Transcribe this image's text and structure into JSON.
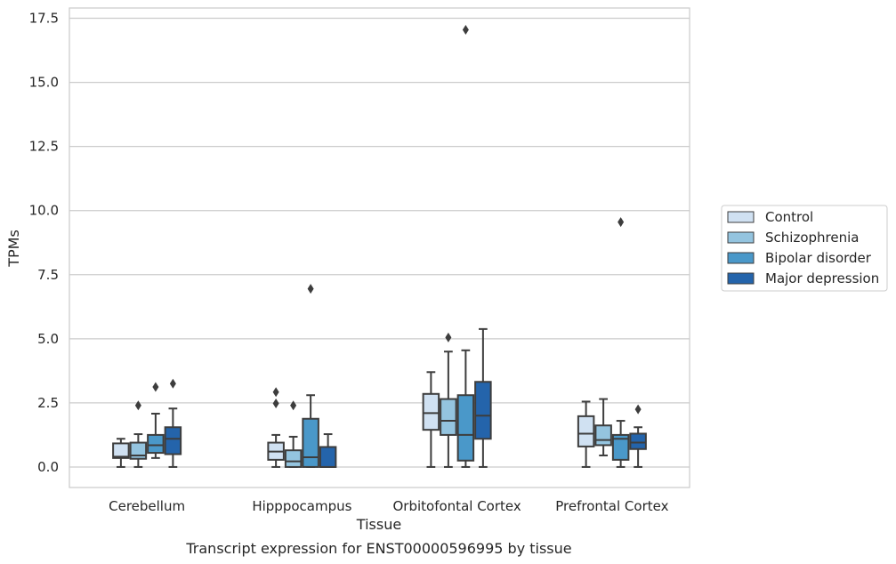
{
  "chart_data": {
    "type": "box",
    "title": "",
    "caption": "Transcript expression for ENST00000596995 by tissue",
    "xlabel": "Tissue",
    "ylabel": "TPMs",
    "ylim": [
      -0.8,
      17.9
    ],
    "yticks": [
      "0.0",
      "2.5",
      "5.0",
      "7.5",
      "10.0",
      "12.5",
      "15.0",
      "17.5"
    ],
    "ytick_values": [
      0,
      2.5,
      5,
      7.5,
      10,
      12.5,
      15,
      17.5
    ],
    "grid": "horizontal",
    "legend_position": "right",
    "categories": [
      "Cerebellum",
      "Hipppocampus",
      "Orbitofontal Cortex",
      "Prefrontal Cortex"
    ],
    "series": [
      {
        "name": "Control",
        "color": "#d0e1f2",
        "boxes": [
          {
            "whislo": 0.0,
            "q1": 0.35,
            "med": 0.4,
            "q3": 0.92,
            "whishi": 1.1,
            "fliers": []
          },
          {
            "whislo": 0.0,
            "q1": 0.28,
            "med": 0.6,
            "q3": 0.95,
            "whishi": 1.25,
            "fliers": [
              2.48,
              2.92
            ]
          },
          {
            "whislo": 0.0,
            "q1": 1.45,
            "med": 2.1,
            "q3": 2.85,
            "whishi": 3.7,
            "fliers": []
          },
          {
            "whislo": 0.0,
            "q1": 0.8,
            "med": 1.3,
            "q3": 1.98,
            "whishi": 2.55,
            "fliers": []
          }
        ]
      },
      {
        "name": "Schizophrenia",
        "color": "#94c4df",
        "boxes": [
          {
            "whislo": 0.0,
            "q1": 0.32,
            "med": 0.45,
            "q3": 0.95,
            "whishi": 1.28,
            "fliers": [
              2.4
            ]
          },
          {
            "whislo": 0.0,
            "q1": 0.0,
            "med": 0.22,
            "q3": 0.65,
            "whishi": 1.18,
            "fliers": [
              2.4
            ]
          },
          {
            "whislo": 0.0,
            "q1": 1.25,
            "med": 1.8,
            "q3": 2.65,
            "whishi": 4.5,
            "fliers": [
              5.05
            ]
          },
          {
            "whislo": 0.45,
            "q1": 0.85,
            "med": 1.05,
            "q3": 1.62,
            "whishi": 2.65,
            "fliers": []
          }
        ]
      },
      {
        "name": "Bipolar disorder",
        "color": "#4a98c9",
        "boxes": [
          {
            "whislo": 0.35,
            "q1": 0.55,
            "med": 0.85,
            "q3": 1.25,
            "whishi": 2.08,
            "fliers": [
              3.12
            ]
          },
          {
            "whislo": 0.0,
            "q1": 0.0,
            "med": 0.38,
            "q3": 1.88,
            "whishi": 2.8,
            "fliers": [
              6.95
            ]
          },
          {
            "whislo": 0.0,
            "q1": 0.25,
            "med": 1.25,
            "q3": 2.8,
            "whishi": 4.55,
            "fliers": [
              17.05
            ]
          },
          {
            "whislo": 0.0,
            "q1": 0.28,
            "med": 1.1,
            "q3": 1.25,
            "whishi": 1.8,
            "fliers": [
              9.55
            ]
          }
        ]
      },
      {
        "name": "Major depression",
        "color": "#2464ab",
        "boxes": [
          {
            "whislo": 0.0,
            "q1": 0.5,
            "med": 1.1,
            "q3": 1.55,
            "whishi": 2.28,
            "fliers": [
              3.25
            ]
          },
          {
            "whislo": 0.0,
            "q1": 0.0,
            "med": 0.0,
            "q3": 0.78,
            "whishi": 1.28,
            "fliers": []
          },
          {
            "whislo": 0.0,
            "q1": 1.1,
            "med": 2.0,
            "q3": 3.32,
            "whishi": 5.38,
            "fliers": []
          },
          {
            "whislo": 0.0,
            "q1": 0.7,
            "med": 0.95,
            "q3": 1.3,
            "whishi": 1.55,
            "fliers": [
              2.25
            ]
          }
        ]
      }
    ]
  }
}
